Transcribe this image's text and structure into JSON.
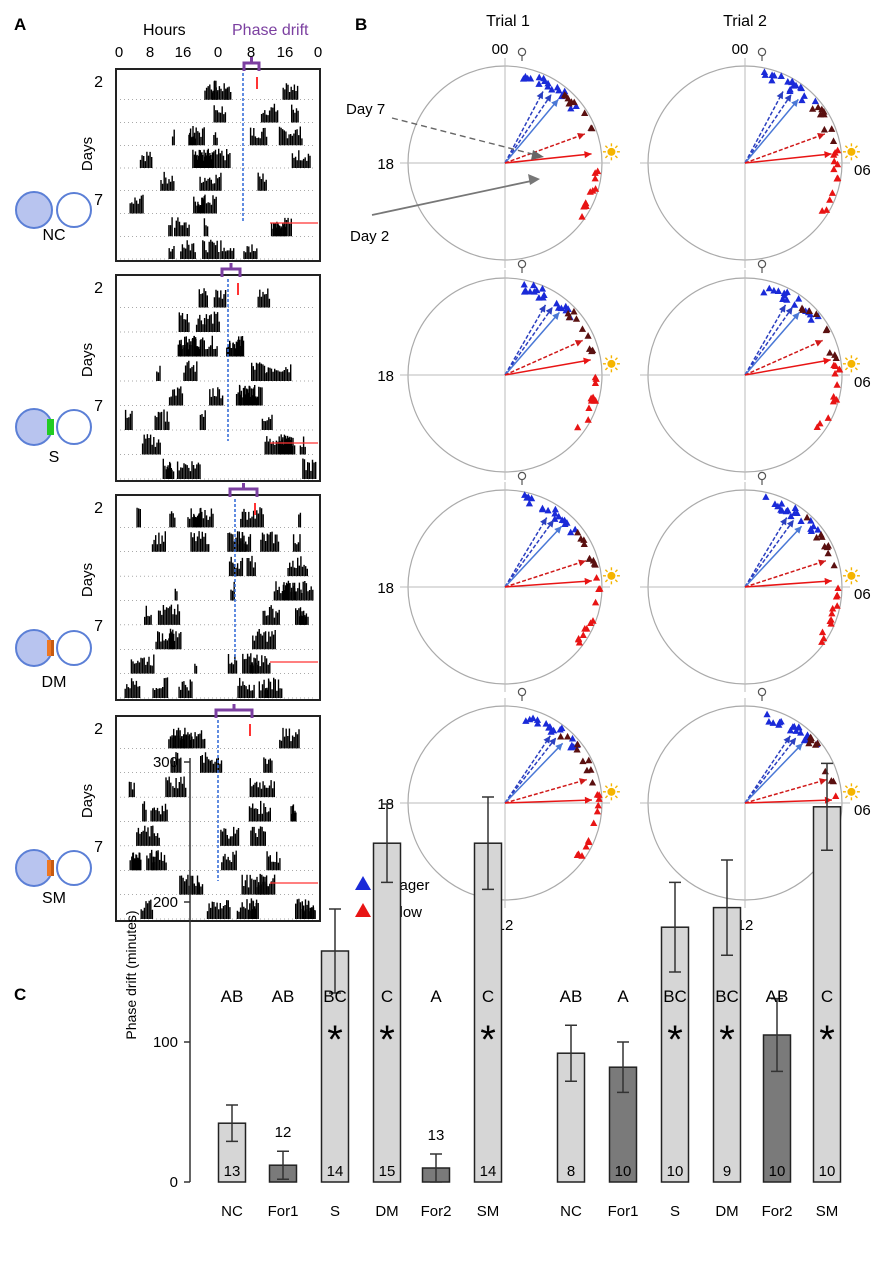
{
  "panels": {
    "a": "A",
    "b": "B",
    "c": "C"
  },
  "panel_a": {
    "hours_label": "Hours",
    "phase_drift_label": "Phase drift",
    "hour_ticks": [
      "0",
      "8",
      "16",
      "0",
      "8",
      "16",
      "0"
    ],
    "days_label": "Days",
    "day_ticks": [
      "2",
      "7"
    ],
    "conditions": [
      "NC",
      "S",
      "DM",
      "SM"
    ],
    "colors": {
      "accent": "#7b3fa0",
      "guide": "#3a6fd8",
      "callow": "#ff3333",
      "separator_s": "#22cc22",
      "separator_mesh": "#ee7722"
    }
  },
  "panel_b": {
    "trial_labels": [
      "Trial 1",
      "Trial 2"
    ],
    "clock_labels": {
      "top": "00",
      "left": "18",
      "right": "06",
      "bottom": "12"
    },
    "day7_label": "Day 7",
    "day2_label": "Day 2",
    "legend": [
      {
        "label": "Forager",
        "color": "#1a2ad8"
      },
      {
        "label": "Callow",
        "color": "#e81414"
      }
    ],
    "icons": [
      "moon-icon",
      "sun-icon"
    ]
  },
  "chart_data": {
    "type": "bar",
    "ylabel": "Phase drift (minutes)",
    "ylim": [
      0,
      300
    ],
    "yticks": [
      "0",
      "100",
      "200",
      "300"
    ],
    "groups": [
      {
        "categories": [
          "NC",
          "For1",
          "S",
          "DM",
          "For2",
          "SM"
        ],
        "values": [
          42,
          12,
          165,
          242,
          10,
          242
        ],
        "errors": [
          13,
          10,
          30,
          28,
          10,
          33
        ],
        "n": [
          "13",
          "12",
          "14",
          "15",
          "13",
          "14"
        ],
        "letters": [
          "AB",
          "AB",
          "BC",
          "C",
          "A",
          "C"
        ],
        "significant": [
          false,
          false,
          true,
          true,
          false,
          true
        ]
      },
      {
        "categories": [
          "NC",
          "For1",
          "S",
          "DM",
          "For2",
          "SM"
        ],
        "values": [
          92,
          82,
          182,
          196,
          105,
          268
        ],
        "errors": [
          20,
          18,
          32,
          34,
          26,
          31
        ],
        "n": [
          "8",
          "10",
          "10",
          "9",
          "10",
          "10"
        ],
        "letters": [
          "AB",
          "A",
          "BC",
          "BC",
          "AB",
          "C"
        ],
        "significant": [
          false,
          false,
          true,
          true,
          false,
          true
        ]
      }
    ],
    "significance_mark": "*",
    "bar_colors": {
      "light": "#d6d6d6",
      "dark": "#7a7a7a"
    }
  }
}
